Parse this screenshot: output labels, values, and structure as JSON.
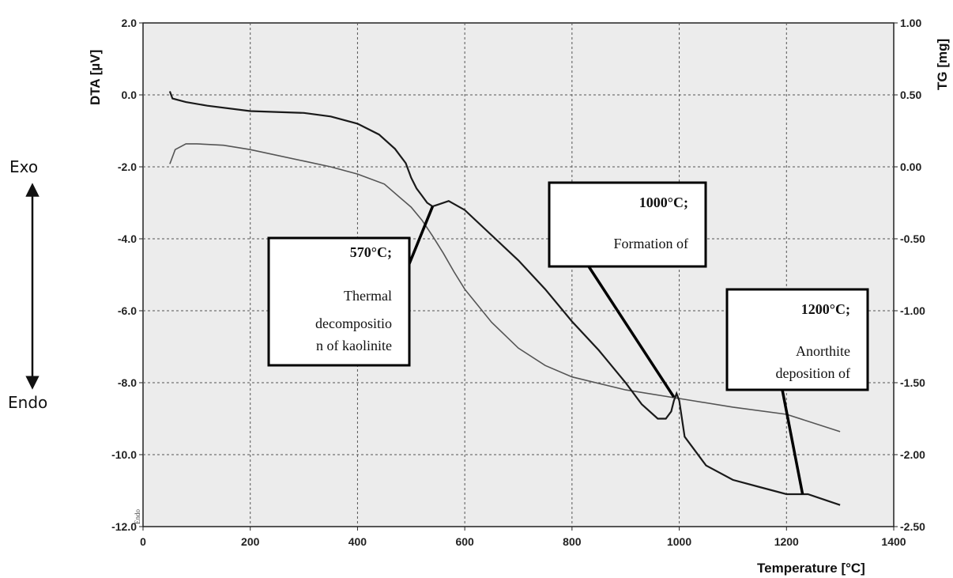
{
  "chart_data": {
    "type": "line",
    "xlabel": "Temperature  [°C]",
    "ylabel_left": "DTA  [µV]",
    "ylabel_right": "TG  [mg]",
    "xlim": [
      0,
      1400
    ],
    "ylim_left": [
      -12.0,
      2.0
    ],
    "ylim_right": [
      -2.5,
      1.0
    ],
    "grid": true,
    "x_ticks": [
      "0",
      "200",
      "400",
      "600",
      "800",
      "1000",
      "1200",
      "1400"
    ],
    "y_left_ticks": [
      "2.0",
      "0.0",
      "-2.0",
      "-4.0",
      "-6.0",
      "-8.0",
      "-10.0",
      "-12.0"
    ],
    "y_right_ticks": [
      "1.00",
      "0.50",
      "0.00",
      "-0.50",
      "-1.00",
      "-1.50",
      "-2.00",
      "-2.50"
    ],
    "series": [
      {
        "axis": "left",
        "x": [
          50,
          55,
          80,
          120,
          200,
          300,
          350,
          400,
          440,
          470,
          490,
          500,
          510,
          520,
          530,
          540,
          550,
          570,
          600,
          650,
          700,
          750,
          800,
          850,
          900,
          930,
          960,
          975,
          985,
          990,
          995,
          1000,
          1010,
          1050,
          1100,
          1150,
          1200,
          1230,
          1240,
          1260,
          1300
        ],
        "y": [
          0.1,
          -0.1,
          -0.2,
          -0.3,
          -0.45,
          -0.5,
          -0.6,
          -0.8,
          -1.1,
          -1.5,
          -1.9,
          -2.3,
          -2.6,
          -2.8,
          -3.0,
          -3.1,
          -3.05,
          -2.95,
          -3.2,
          -3.9,
          -4.6,
          -5.4,
          -6.3,
          -7.1,
          -8.0,
          -8.6,
          -9.0,
          -9.0,
          -8.8,
          -8.5,
          -8.3,
          -8.5,
          -9.5,
          -10.3,
          -10.7,
          -10.9,
          -11.1,
          -11.1,
          -11.1,
          -11.2,
          -11.4
        ]
      },
      {
        "axis": "right",
        "x": [
          50,
          60,
          80,
          100,
          150,
          200,
          300,
          350,
          400,
          450,
          500,
          520,
          540,
          560,
          580,
          600,
          650,
          700,
          750,
          800,
          900,
          1000,
          1100,
          1200,
          1300
        ],
        "y": [
          0.02,
          0.12,
          0.16,
          0.16,
          0.15,
          0.12,
          0.04,
          0.0,
          -0.05,
          -0.12,
          -0.28,
          -0.37,
          -0.48,
          -0.6,
          -0.73,
          -0.85,
          -1.08,
          -1.26,
          -1.38,
          -1.46,
          -1.55,
          -1.61,
          -1.67,
          -1.72,
          -1.84
        ]
      }
    ],
    "annotations": [
      {
        "lines": [
          "570°C;",
          "Thermal",
          "decompositio",
          "n of kaolinite"
        ],
        "target": {
          "x": 540,
          "y": -3.1
        }
      },
      {
        "lines": [
          "1000°C;",
          "Formation of"
        ],
        "target": {
          "x": 990,
          "y": -8.4
        }
      },
      {
        "lines": [
          "1200°C;",
          "Anorthite",
          "deposition of"
        ],
        "target": {
          "x": 1230,
          "y": -11.1
        }
      }
    ],
    "side_labels": {
      "exo": "Exo",
      "endo": "Endo",
      "small_endo": "Endo"
    }
  },
  "colors": {
    "dta": "#1a1a1a",
    "tg": "#555555",
    "grid": "#555555",
    "plot_bg": "#ececec"
  }
}
